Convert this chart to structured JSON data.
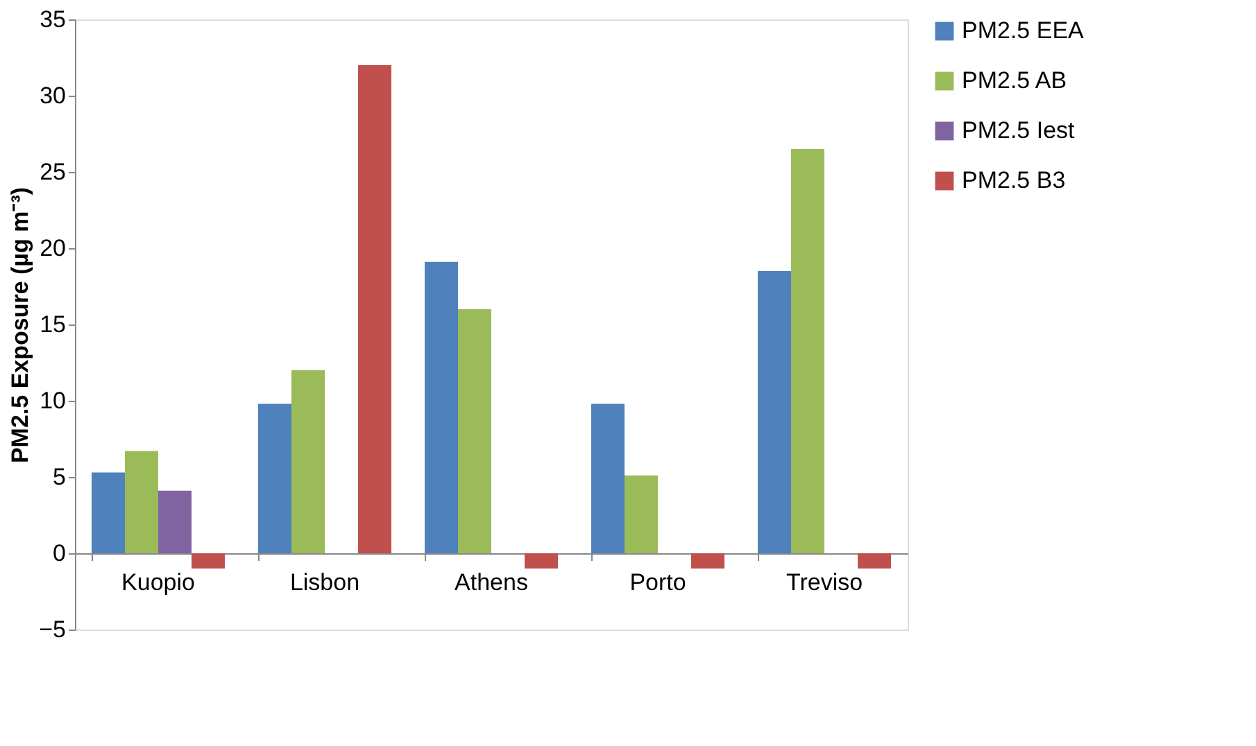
{
  "chart_data": {
    "type": "bar",
    "categories": [
      "Kuopio",
      "Lisbon",
      "Athens",
      "Porto",
      "Treviso"
    ],
    "series": [
      {
        "name": "PM2.5 EEA",
        "color": "#4f81bd",
        "values": [
          5.3,
          9.8,
          19.1,
          9.8,
          18.5
        ]
      },
      {
        "name": "PM2.5 AB",
        "color": "#9bbb59",
        "values": [
          6.7,
          12,
          16,
          5.1,
          26.5
        ]
      },
      {
        "name": "PM2.5 Iest",
        "color": "#8064a2",
        "values": [
          4.1,
          null,
          null,
          null,
          null
        ]
      },
      {
        "name": "PM2.5 B3",
        "color": "#c0504d",
        "values": [
          -1,
          32,
          -1,
          -1,
          -1
        ]
      }
    ],
    "ylabel": "PM2.5 Exposure (µg m⁻³)",
    "ylim": [
      -5,
      35
    ],
    "yticks": [
      -5,
      0,
      5,
      10,
      15,
      20,
      25,
      30,
      35
    ],
    "grid": false,
    "legend": "right"
  }
}
